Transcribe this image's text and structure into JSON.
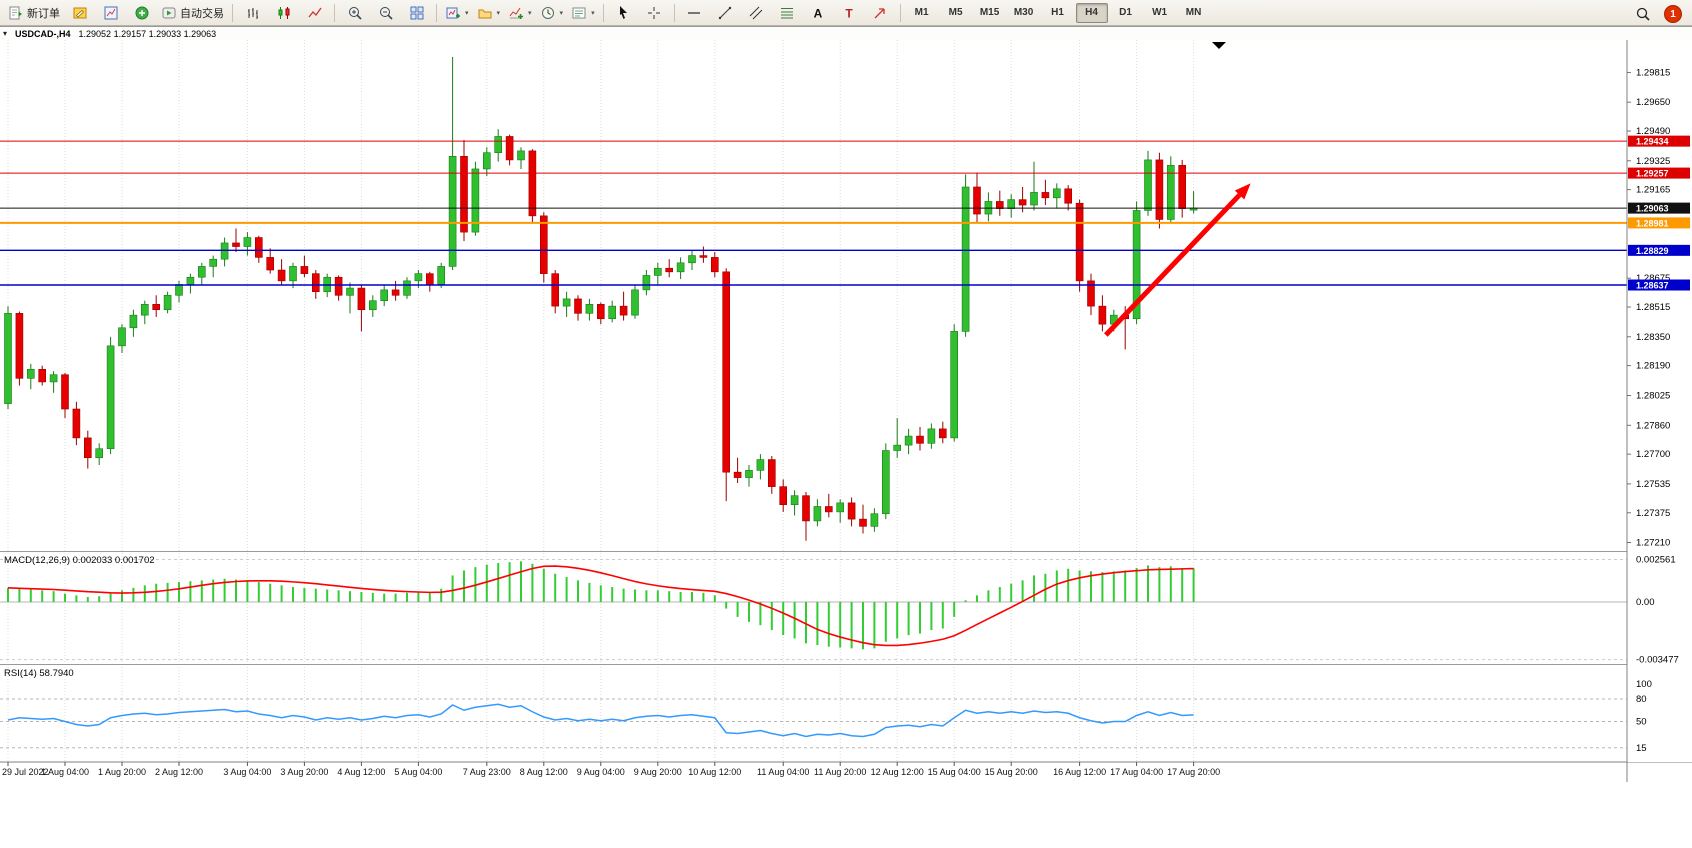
{
  "toolbar": {
    "groups": [
      {
        "buttons": [
          {
            "name": "new-order-button",
            "icon": "new-order",
            "label": "新订单"
          },
          {
            "name": "metaeditor-button",
            "icon": "metaeditor"
          },
          {
            "name": "charts-window-button",
            "icon": "chart-window"
          },
          {
            "name": "market-watch-button",
            "icon": "market-watch"
          },
          {
            "name": "autotrading-button",
            "icon": "autotrading",
            "label": "自动交易"
          }
        ]
      },
      {
        "buttons": [
          {
            "name": "bar-chart-button",
            "icon": "bars"
          },
          {
            "name": "candlestick-chart-button",
            "icon": "candles"
          },
          {
            "name": "line-chart-button",
            "icon": "line-chart"
          }
        ]
      },
      {
        "buttons": [
          {
            "name": "zoom-in-button",
            "icon": "zoom-in"
          },
          {
            "name": "zoom-out-button",
            "icon": "zoom-out"
          },
          {
            "name": "tile-windows-button",
            "icon": "tile-windows"
          }
        ]
      },
      {
        "buttons": [
          {
            "name": "new-chart-button",
            "icon": "new-chart",
            "dropdown": true
          },
          {
            "name": "profiles-button",
            "icon": "profiles",
            "dropdown": true
          },
          {
            "name": "indicators-button",
            "icon": "indicators",
            "dropdown": true
          },
          {
            "name": "periods-button",
            "icon": "periods",
            "dropdown": true
          },
          {
            "name": "templates-button",
            "icon": "templates",
            "dropdown": true
          }
        ]
      },
      {
        "buttons": [
          {
            "name": "cursor-button",
            "icon": "cursor"
          },
          {
            "name": "crosshair-button",
            "icon": "crosshair"
          }
        ]
      },
      {
        "buttons": [
          {
            "name": "horizontal-line-button",
            "icon": "hline"
          },
          {
            "name": "trendline-button",
            "icon": "trendline"
          },
          {
            "name": "channel-button",
            "icon": "channel"
          },
          {
            "name": "fibonacci-button",
            "icon": "fibonacci"
          },
          {
            "name": "text-button",
            "icon": "text"
          },
          {
            "name": "label-button",
            "icon": "label"
          },
          {
            "name": "arrows-button",
            "icon": "arrow-tool"
          }
        ]
      }
    ],
    "timeframes": [
      "M1",
      "M5",
      "M15",
      "M30",
      "H1",
      "H4",
      "D1",
      "W1",
      "MN"
    ],
    "active_timeframe": "H4",
    "notification_count": "1"
  },
  "chart": {
    "symbol": "USDCAD-,H4",
    "ohlc_text": "1.29052 1.29157 1.29033 1.29063"
  },
  "chart_data": {
    "type": "candlestick",
    "symbol": "USDCAD",
    "timeframe": "H4",
    "title": "USDCAD-,H4 1.29052 1.29157 1.29033 1.29063",
    "ylim": [
      1.2718,
      1.2995
    ],
    "colors": {
      "up": "#2fbf2f",
      "down": "#e60000",
      "wick_up": "#1a7a1a",
      "wick_down": "#990000"
    },
    "price_axis": {
      "ticks": [
        "1.29815",
        "1.29650",
        "1.29490",
        "1.29325",
        "1.29165",
        "1.28675",
        "1.28515",
        "1.28350",
        "1.28190",
        "1.28025",
        "1.27860",
        "1.27700",
        "1.27535",
        "1.27375",
        "1.27210"
      ]
    },
    "candles": [
      [
        1.2798,
        1.2852,
        1.2795,
        1.2848
      ],
      [
        1.2848,
        1.2849,
        1.2808,
        1.2812
      ],
      [
        1.2812,
        1.282,
        1.2806,
        1.2817
      ],
      [
        1.2817,
        1.2819,
        1.2808,
        1.281
      ],
      [
        1.281,
        1.2816,
        1.2804,
        1.2814
      ],
      [
        1.2814,
        1.2815,
        1.279,
        1.2795
      ],
      [
        1.2795,
        1.2799,
        1.2775,
        1.2779
      ],
      [
        1.2779,
        1.2783,
        1.2762,
        1.2768
      ],
      [
        1.2768,
        1.2776,
        1.2764,
        1.2773
      ],
      [
        1.2773,
        1.2835,
        1.277,
        1.283
      ],
      [
        1.283,
        1.2842,
        1.2826,
        1.284
      ],
      [
        1.284,
        1.285,
        1.2835,
        1.2847
      ],
      [
        1.2847,
        1.2855,
        1.2842,
        1.2853
      ],
      [
        1.2853,
        1.2858,
        1.2846,
        1.285
      ],
      [
        1.285,
        1.286,
        1.2848,
        1.2858
      ],
      [
        1.2858,
        1.2866,
        1.2854,
        1.2864
      ],
      [
        1.2864,
        1.287,
        1.2859,
        1.2868
      ],
      [
        1.2868,
        1.2876,
        1.2864,
        1.2874
      ],
      [
        1.2874,
        1.288,
        1.2868,
        1.2878
      ],
      [
        1.2878,
        1.289,
        1.2874,
        1.2887
      ],
      [
        1.2887,
        1.2895,
        1.2882,
        1.2885
      ],
      [
        1.2885,
        1.2893,
        1.288,
        1.289
      ],
      [
        1.289,
        1.2891,
        1.2876,
        1.2879
      ],
      [
        1.2879,
        1.2884,
        1.287,
        1.2872
      ],
      [
        1.2872,
        1.2878,
        1.2864,
        1.2866
      ],
      [
        1.2866,
        1.2876,
        1.2862,
        1.2874
      ],
      [
        1.2874,
        1.288,
        1.2868,
        1.287
      ],
      [
        1.287,
        1.2872,
        1.2856,
        1.286
      ],
      [
        1.286,
        1.287,
        1.2857,
        1.2868
      ],
      [
        1.2868,
        1.2869,
        1.2855,
        1.2858
      ],
      [
        1.2858,
        1.2865,
        1.2848,
        1.2862
      ],
      [
        1.2862,
        1.2864,
        1.2838,
        1.285
      ],
      [
        1.285,
        1.2858,
        1.2846,
        1.2855
      ],
      [
        1.2855,
        1.2864,
        1.2852,
        1.2861
      ],
      [
        1.2861,
        1.2866,
        1.2855,
        1.2858
      ],
      [
        1.2858,
        1.2868,
        1.2856,
        1.2866
      ],
      [
        1.2866,
        1.2872,
        1.2862,
        1.287
      ],
      [
        1.287,
        1.2871,
        1.286,
        1.2864
      ],
      [
        1.2864,
        1.2876,
        1.2862,
        1.2874
      ],
      [
        1.2874,
        1.299,
        1.2872,
        1.2935
      ],
      [
        1.2935,
        1.2944,
        1.2888,
        1.2893
      ],
      [
        1.2893,
        1.2932,
        1.2891,
        1.2928
      ],
      [
        1.2928,
        1.294,
        1.2924,
        1.2937
      ],
      [
        1.2937,
        1.295,
        1.2932,
        1.2946
      ],
      [
        1.2946,
        1.2947,
        1.293,
        1.2933
      ],
      [
        1.2933,
        1.294,
        1.2928,
        1.2938
      ],
      [
        1.2938,
        1.2939,
        1.2898,
        1.2902
      ],
      [
        1.2902,
        1.2904,
        1.2865,
        1.287
      ],
      [
        1.287,
        1.2872,
        1.2848,
        1.2852
      ],
      [
        1.2852,
        1.286,
        1.2846,
        1.2856
      ],
      [
        1.2856,
        1.2858,
        1.2844,
        1.2848
      ],
      [
        1.2848,
        1.2856,
        1.2844,
        1.2853
      ],
      [
        1.2853,
        1.2854,
        1.2842,
        1.2845
      ],
      [
        1.2845,
        1.2855,
        1.2843,
        1.2852
      ],
      [
        1.2852,
        1.286,
        1.2844,
        1.2847
      ],
      [
        1.2847,
        1.2864,
        1.2845,
        1.2861
      ],
      [
        1.2861,
        1.2872,
        1.2858,
        1.2869
      ],
      [
        1.2869,
        1.2876,
        1.2864,
        1.2873
      ],
      [
        1.2873,
        1.2878,
        1.2868,
        1.2871
      ],
      [
        1.2871,
        1.2879,
        1.2867,
        1.2876
      ],
      [
        1.2876,
        1.2883,
        1.2872,
        1.288
      ],
      [
        1.288,
        1.2885,
        1.2876,
        1.2879
      ],
      [
        1.2879,
        1.2882,
        1.2868,
        1.2871
      ],
      [
        1.2871,
        1.2873,
        1.2744,
        1.276
      ],
      [
        1.276,
        1.2768,
        1.2754,
        1.2757
      ],
      [
        1.2757,
        1.2764,
        1.2752,
        1.2761
      ],
      [
        1.2761,
        1.277,
        1.2756,
        1.2767
      ],
      [
        1.2767,
        1.2769,
        1.2748,
        1.2752
      ],
      [
        1.2752,
        1.2756,
        1.2738,
        1.2742
      ],
      [
        1.2742,
        1.275,
        1.2736,
        1.2747
      ],
      [
        1.2747,
        1.2749,
        1.2722,
        1.2733
      ],
      [
        1.2733,
        1.2745,
        1.273,
        1.2741
      ],
      [
        1.2741,
        1.2748,
        1.2735,
        1.2738
      ],
      [
        1.2738,
        1.2745,
        1.2732,
        1.2743
      ],
      [
        1.2743,
        1.2746,
        1.273,
        1.2734
      ],
      [
        1.2734,
        1.2742,
        1.2726,
        1.273
      ],
      [
        1.273,
        1.274,
        1.2727,
        1.2737
      ],
      [
        1.2737,
        1.2776,
        1.2734,
        1.2772
      ],
      [
        1.2772,
        1.279,
        1.2768,
        1.2775
      ],
      [
        1.2775,
        1.2784,
        1.277,
        1.278
      ],
      [
        1.278,
        1.2785,
        1.2772,
        1.2776
      ],
      [
        1.2776,
        1.2787,
        1.2773,
        1.2784
      ],
      [
        1.2784,
        1.2788,
        1.2776,
        1.2779
      ],
      [
        1.2779,
        1.2842,
        1.2777,
        1.2838
      ],
      [
        1.2838,
        1.2925,
        1.2835,
        1.2918
      ],
      [
        1.2918,
        1.2926,
        1.2898,
        1.2903
      ],
      [
        1.2903,
        1.2915,
        1.2899,
        1.291
      ],
      [
        1.291,
        1.2916,
        1.2902,
        1.2906
      ],
      [
        1.2906,
        1.2914,
        1.2901,
        1.2911
      ],
      [
        1.2911,
        1.2918,
        1.2904,
        1.2908
      ],
      [
        1.2908,
        1.2932,
        1.2905,
        1.2915
      ],
      [
        1.2915,
        1.2922,
        1.2908,
        1.2912
      ],
      [
        1.2912,
        1.292,
        1.2906,
        1.2917
      ],
      [
        1.2917,
        1.2919,
        1.2905,
        1.2909
      ],
      [
        1.2909,
        1.2911,
        1.286,
        1.2866
      ],
      [
        1.2866,
        1.287,
        1.2847,
        1.2852
      ],
      [
        1.2852,
        1.2858,
        1.2838,
        1.2842
      ],
      [
        1.2842,
        1.285,
        1.2838,
        1.2847
      ],
      [
        1.2847,
        1.2852,
        1.2828,
        1.2845
      ],
      [
        1.2845,
        1.291,
        1.2842,
        1.2905
      ],
      [
        1.2905,
        1.2938,
        1.2902,
        1.2933
      ],
      [
        1.2933,
        1.2937,
        1.2895,
        1.29
      ],
      [
        1.29,
        1.2935,
        1.2898,
        1.293
      ],
      [
        1.293,
        1.2933,
        1.2901,
        1.2906
      ],
      [
        1.29052,
        1.29157,
        1.29033,
        1.29063
      ]
    ],
    "time_labels": [
      {
        "i": 0,
        "t": "29 Jul 2022"
      },
      {
        "i": 5,
        "t": "1 Aug 04:00"
      },
      {
        "i": 10,
        "t": "1 Aug 20:00"
      },
      {
        "i": 15,
        "t": "2 Aug 12:00"
      },
      {
        "i": 21,
        "t": "3 Aug 04:00"
      },
      {
        "i": 26,
        "t": "3 Aug 20:00"
      },
      {
        "i": 31,
        "t": "4 Aug 12:00"
      },
      {
        "i": 36,
        "t": "5 Aug 04:00"
      },
      {
        "i": 42,
        "t": "7 Aug 23:00"
      },
      {
        "i": 47,
        "t": "8 Aug 12:00"
      },
      {
        "i": 52,
        "t": "9 Aug 04:00"
      },
      {
        "i": 57,
        "t": "9 Aug 20:00"
      },
      {
        "i": 62,
        "t": "10 Aug 12:00"
      },
      {
        "i": 68,
        "t": "11 Aug 04:00"
      },
      {
        "i": 73,
        "t": "11 Aug 20:00"
      },
      {
        "i": 78,
        "t": "12 Aug 12:00"
      },
      {
        "i": 83,
        "t": "15 Aug 04:00"
      },
      {
        "i": 88,
        "t": "15 Aug 20:00"
      },
      {
        "i": 94,
        "t": "16 Aug 12:00"
      },
      {
        "i": 99,
        "t": "17 Aug 04:00"
      },
      {
        "i": 104,
        "t": "17 Aug 20:00"
      }
    ],
    "hlines": [
      {
        "price": 1.29434,
        "tag": "1.29434",
        "color": "#dd0000",
        "width": 1
      },
      {
        "price": 1.29257,
        "tag": "1.29257",
        "color": "#dd0000",
        "width": 1
      },
      {
        "price": 1.28981,
        "tag": "1.28981",
        "color": "#ff9900",
        "width": 2
      },
      {
        "price": 1.28829,
        "tag": "1.28829",
        "color": "#0000cc",
        "width": 1.4
      },
      {
        "price": 1.28637,
        "tag": "1.28637",
        "color": "#0000cc",
        "width": 1.4
      }
    ],
    "current_price": {
      "price": 1.29063,
      "tag": "1.29063",
      "color": "#111111"
    },
    "trend_arrow": {
      "from": {
        "i": 96.3,
        "price": 1.2836
      },
      "to": {
        "i": 109,
        "price": 1.292
      },
      "color": "#ff0000"
    },
    "macd": {
      "label": "MACD(12,26,9)",
      "values_text": "0.002033 0.001702",
      "axis_ticks": [
        "0.002561",
        "0.00",
        "-0.003477"
      ],
      "range": [
        -0.0035,
        0.00265
      ],
      "signal_period": 9,
      "hist_color": "#33cc33",
      "signal_color": "#ff0000",
      "histogram": [
        0.00085,
        0.0008,
        0.00075,
        0.0007,
        0.00065,
        0.0005,
        0.0004,
        0.0003,
        0.00035,
        0.0005,
        0.0007,
        0.00085,
        0.001,
        0.0011,
        0.00115,
        0.0012,
        0.00125,
        0.0013,
        0.00135,
        0.0014,
        0.00135,
        0.0013,
        0.0012,
        0.0011,
        0.001,
        0.0009,
        0.00085,
        0.0008,
        0.00075,
        0.0007,
        0.00065,
        0.0006,
        0.00055,
        0.0005,
        0.0005,
        0.00055,
        0.0006,
        0.00055,
        0.0008,
        0.0016,
        0.0019,
        0.0021,
        0.00225,
        0.00235,
        0.0024,
        0.00245,
        0.0023,
        0.002,
        0.0017,
        0.0015,
        0.0013,
        0.00115,
        0.001,
        0.0009,
        0.0008,
        0.00075,
        0.0007,
        0.0007,
        0.00065,
        0.0006,
        0.0006,
        0.00055,
        0.0004,
        -0.0004,
        -0.0009,
        -0.0012,
        -0.0014,
        -0.0017,
        -0.002,
        -0.0022,
        -0.0025,
        -0.0026,
        -0.0027,
        -0.00275,
        -0.0028,
        -0.00285,
        -0.0028,
        -0.0024,
        -0.0022,
        -0.002,
        -0.0019,
        -0.0017,
        -0.0016,
        -0.0009,
        0.0001,
        0.0004,
        0.0007,
        0.0009,
        0.0011,
        0.0013,
        0.0016,
        0.0017,
        0.0019,
        0.002,
        0.0019,
        0.00185,
        0.0018,
        0.00185,
        0.0019,
        0.00205,
        0.0022,
        0.0021,
        0.00215,
        0.00205,
        0.002033
      ]
    },
    "rsi": {
      "label": "RSI(14)",
      "value_text": "58.7940",
      "color": "#3399ff",
      "levels": [
        80,
        50,
        15
      ],
      "axis_labels": [
        {
          "v": 100,
          "t": "100"
        },
        {
          "v": 80,
          "t": "80"
        },
        {
          "v": 50,
          "t": "50"
        },
        {
          "v": 15,
          "t": "15"
        }
      ],
      "values": [
        52,
        55,
        54,
        53,
        54,
        50,
        46,
        44,
        46,
        55,
        58,
        60,
        61,
        59,
        60,
        62,
        63,
        64,
        65,
        66,
        63,
        64,
        60,
        58,
        55,
        58,
        56,
        52,
        55,
        53,
        55,
        52,
        54,
        57,
        55,
        58,
        59,
        56,
        60,
        72,
        65,
        69,
        71,
        73,
        69,
        71,
        63,
        56,
        52,
        54,
        51,
        53,
        51,
        53,
        51,
        55,
        57,
        58,
        56,
        58,
        59,
        57,
        55,
        35,
        34,
        36,
        38,
        34,
        31,
        34,
        30,
        33,
        32,
        34,
        31,
        30,
        33,
        42,
        44,
        45,
        43,
        46,
        44,
        55,
        65,
        61,
        63,
        61,
        63,
        61,
        64,
        62,
        63,
        61,
        55,
        51,
        48,
        50,
        50,
        58,
        63,
        58,
        62,
        58,
        58.79
      ]
    }
  }
}
